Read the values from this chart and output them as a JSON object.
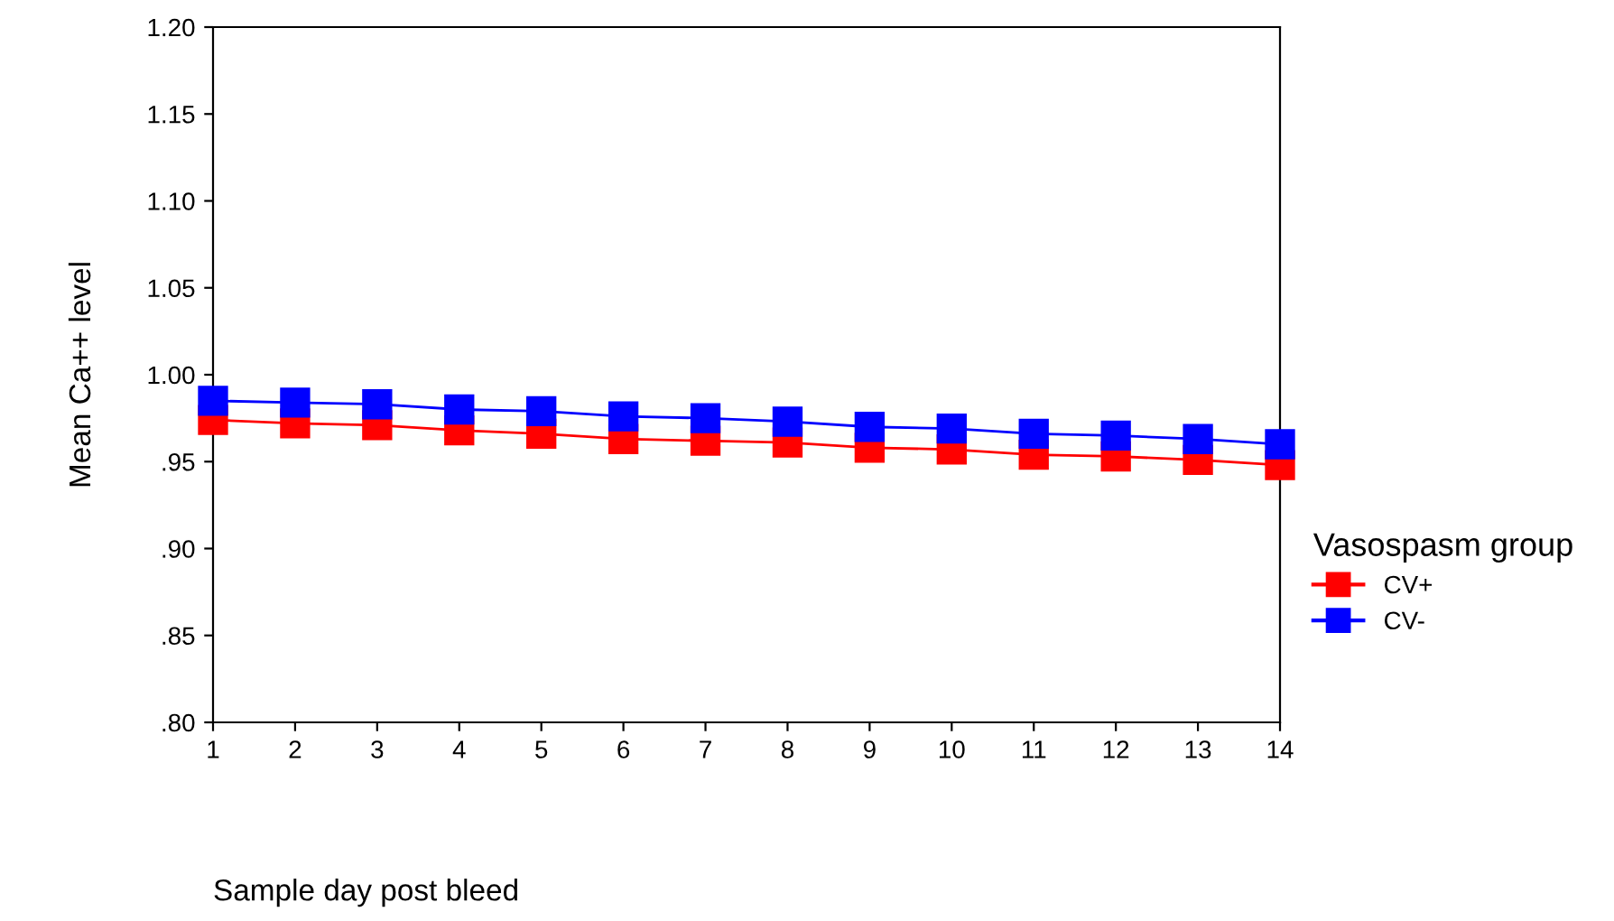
{
  "chart_data": {
    "type": "line",
    "xlabel": "Sample day post bleed",
    "ylabel": "Mean Ca++ level",
    "legend_title": "Vasospasm group",
    "x": [
      1,
      2,
      3,
      4,
      5,
      6,
      7,
      8,
      9,
      10,
      11,
      12,
      13,
      14
    ],
    "series": [
      {
        "name": "CV+",
        "color": "#ff0000",
        "values": [
          0.974,
          0.972,
          0.971,
          0.968,
          0.966,
          0.963,
          0.962,
          0.961,
          0.958,
          0.957,
          0.954,
          0.953,
          0.951,
          0.948
        ]
      },
      {
        "name": "CV-",
        "color": "#0000ff",
        "values": [
          0.985,
          0.984,
          0.983,
          0.98,
          0.979,
          0.976,
          0.975,
          0.973,
          0.97,
          0.969,
          0.966,
          0.965,
          0.963,
          0.96
        ]
      }
    ],
    "xlim": [
      1,
      14
    ],
    "xticks": [
      1,
      2,
      3,
      4,
      5,
      6,
      7,
      8,
      9,
      10,
      11,
      12,
      13,
      14
    ],
    "ylim": [
      0.8,
      1.2
    ],
    "yticks": [
      {
        "value": 0.8,
        "label": ".80"
      },
      {
        "value": 0.85,
        "label": ".85"
      },
      {
        "value": 0.9,
        "label": ".90"
      },
      {
        "value": 0.95,
        "label": ".95"
      },
      {
        "value": 1.0,
        "label": "1.00"
      },
      {
        "value": 1.05,
        "label": "1.05"
      },
      {
        "value": 1.1,
        "label": "1.10"
      },
      {
        "value": 1.15,
        "label": "1.15"
      },
      {
        "value": 1.2,
        "label": "1.20"
      }
    ],
    "marker": "square",
    "line_style": "solid",
    "grid": false,
    "legend": "right"
  }
}
